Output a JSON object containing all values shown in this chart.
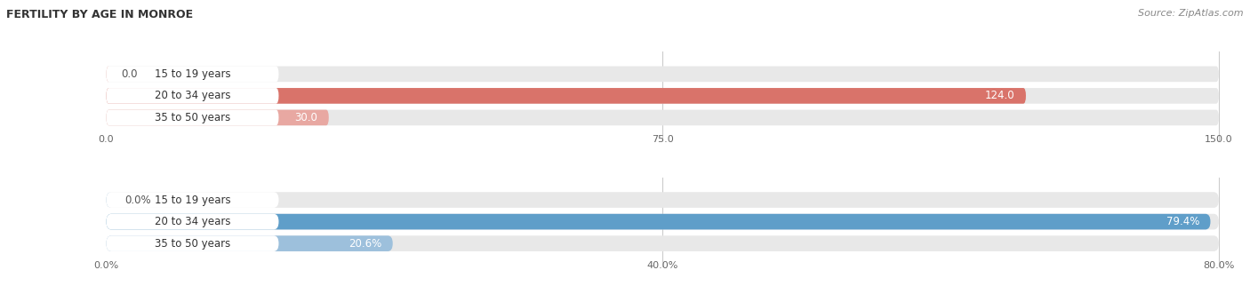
{
  "title": "FERTILITY BY AGE IN MONROE",
  "source": "Source: ZipAtlas.com",
  "top_chart": {
    "categories": [
      "15 to 19 years",
      "20 to 34 years",
      "35 to 50 years"
    ],
    "values": [
      0.0,
      124.0,
      30.0
    ],
    "xlim": [
      0,
      150.0
    ],
    "xticks": [
      0.0,
      75.0,
      150.0
    ],
    "bar_color_strong": "#d9736a",
    "bar_color_light": "#e8a8a2",
    "bar_bg_color": "#e8e8e8",
    "label_color_inside": "#ffffff",
    "label_color_outside": "#555555"
  },
  "bottom_chart": {
    "categories": [
      "15 to 19 years",
      "20 to 34 years",
      "35 to 50 years"
    ],
    "values": [
      0.0,
      79.4,
      20.6
    ],
    "xlim": [
      0,
      80.0
    ],
    "xticks": [
      0.0,
      40.0,
      80.0
    ],
    "xtick_labels": [
      "0.0%",
      "40.0%",
      "80.0%"
    ],
    "bar_color_strong": "#5f9ec9",
    "bar_color_light": "#9dc0dc",
    "bar_bg_color": "#e8e8e8",
    "label_color_inside": "#ffffff",
    "label_color_outside": "#555555"
  },
  "background_color": "#ffffff",
  "title_fontsize": 9,
  "label_fontsize": 8.5,
  "tick_fontsize": 8,
  "source_fontsize": 8,
  "bar_height": 0.72,
  "bar_spacing": 1.0
}
